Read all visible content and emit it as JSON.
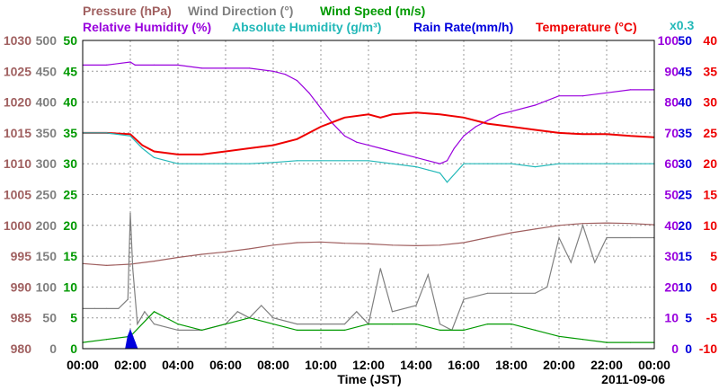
{
  "chart_data": {
    "type": "line",
    "date": "2011-09-06",
    "xlabel": "Time (JST)",
    "x_ticks": [
      "00:00",
      "02:00",
      "04:00",
      "06:00",
      "08:00",
      "10:00",
      "12:00",
      "14:00",
      "16:00",
      "18:00",
      "20:00",
      "22:00",
      "00:00"
    ],
    "xlim": [
      0,
      24
    ],
    "grid": true,
    "legend_placement": "top",
    "series_labels": {
      "pressure": "Pressure (hPa)",
      "wind_direction": "Wind Direction (°)",
      "wind_speed": "Wind Speed (m/s)",
      "relative_humidity": "Relative Humidity (%)",
      "absolute_humidity": "Absolute Humidity (g/m³)",
      "rain_rate": "Rain Rate(mm/h)",
      "temperature": "Temperature (°C)"
    },
    "axes": {
      "pressure": {
        "ylim": [
          980,
          1030
        ],
        "ticks": [
          "1030",
          "1025",
          "1020",
          "1015",
          "1010",
          "1005",
          "1000",
          "995",
          "990",
          "985",
          "980"
        ],
        "color": "#a06060"
      },
      "wind_direction": {
        "ylim": [
          0,
          500
        ],
        "ticks": [
          "500",
          "450",
          "400",
          "350",
          "300",
          "250",
          "200",
          "150",
          "100",
          "50",
          "0"
        ],
        "color": "#808080"
      },
      "wind_speed": {
        "ylim": [
          0,
          50
        ],
        "ticks": [
          "50",
          "45",
          "40",
          "35",
          "30",
          "25",
          "20",
          "15",
          "10",
          "5",
          "0"
        ],
        "color": "#009900"
      },
      "relative_humidity": {
        "ylim": [
          0,
          100
        ],
        "ticks": [
          "100",
          "90",
          "80",
          "70",
          "60",
          "50",
          "40",
          "30",
          "20",
          "10",
          "0"
        ],
        "color": "#9900dd"
      },
      "rain_rate": {
        "ylim": [
          0,
          50
        ],
        "ticks": [
          "50",
          "45",
          "40",
          "35",
          "30",
          "25",
          "20",
          "15",
          "10",
          "5",
          "0"
        ],
        "color": "#0000dd"
      },
      "temperature": {
        "ylim": [
          -10,
          40
        ],
        "ticks": [
          "40",
          "35",
          "30",
          "25",
          "20",
          "15",
          "10",
          "5",
          "0",
          "-5",
          "-10"
        ],
        "color": "#ee0000"
      },
      "absolute_humidity_scale": "x0.3"
    },
    "series": [
      {
        "key": "relative_humidity",
        "color": "#9900dd",
        "x": [
          0,
          1,
          2,
          2.2,
          3,
          4,
          5,
          6,
          7,
          8,
          8.5,
          9,
          9.5,
          10,
          10.5,
          11,
          11.5,
          12,
          12.5,
          13,
          13.5,
          14,
          14.5,
          15,
          15.3,
          15.6,
          16,
          16.5,
          17,
          17.5,
          18,
          19,
          20,
          21,
          22,
          23,
          24
        ],
        "y": [
          92,
          92,
          93,
          92,
          92,
          92,
          91,
          91,
          91,
          90,
          89,
          87,
          83,
          78,
          73,
          69,
          67,
          66,
          65,
          64,
          63,
          62,
          61,
          60,
          61,
          65,
          69,
          72,
          74,
          76,
          77,
          79,
          82,
          82,
          83,
          84,
          84
        ]
      },
      {
        "key": "temperature",
        "color": "#ee0000",
        "x": [
          0,
          1,
          2,
          2.5,
          3,
          4,
          5,
          6,
          7,
          8,
          9,
          10,
          11,
          12,
          12.5,
          13,
          14,
          15,
          16,
          17,
          18,
          19,
          20,
          21,
          22,
          23,
          24
        ],
        "y": [
          25,
          25,
          24.8,
          23,
          22,
          21.5,
          21.5,
          22,
          22.5,
          23,
          24,
          26,
          27.5,
          28,
          27.5,
          28,
          28.3,
          28,
          27.5,
          26.5,
          26,
          25.5,
          25,
          24.8,
          24.8,
          24.5,
          24.3
        ]
      },
      {
        "key": "absolute_humidity",
        "color": "#22b8b8",
        "x": [
          0,
          1,
          2,
          2.5,
          3,
          4,
          5,
          6,
          7,
          8,
          9,
          10,
          11,
          12,
          13,
          14,
          14.5,
          15,
          15.3,
          16,
          17,
          18,
          19,
          20,
          21,
          22,
          23,
          24
        ],
        "y": [
          350,
          350,
          345,
          325,
          310,
          300,
          300,
          300,
          300,
          302,
          305,
          305,
          305,
          305,
          300,
          295,
          290,
          285,
          270,
          300,
          300,
          300,
          295,
          300,
          300,
          300,
          300,
          300
        ]
      },
      {
        "key": "pressure",
        "color": "#a06060",
        "x": [
          0,
          1,
          2,
          3,
          4,
          5,
          6,
          7,
          8,
          9,
          10,
          11,
          12,
          13,
          14,
          15,
          16,
          17,
          18,
          19,
          20,
          21,
          22,
          23,
          24
        ],
        "y": [
          993.8,
          993.5,
          993.7,
          994.2,
          994.8,
          995.3,
          995.7,
          996.2,
          996.8,
          997.2,
          997.3,
          997.1,
          997,
          996.8,
          996.7,
          996.8,
          997.2,
          998,
          998.8,
          999.4,
          1000,
          1000.3,
          1000.4,
          1000.3,
          1000.1
        ]
      },
      {
        "key": "wind_direction",
        "color": "#808080",
        "x": [
          0,
          0.5,
          1,
          1.5,
          1.9,
          2,
          2.1,
          2.3,
          2.6,
          3,
          4,
          5,
          6,
          6.5,
          7,
          7.5,
          8,
          9,
          10,
          11,
          11.5,
          12,
          12.5,
          13,
          14,
          14.5,
          15,
          15.5,
          16,
          17,
          18,
          19,
          19.5,
          20,
          20.5,
          21,
          21.5,
          22,
          23,
          24
        ],
        "y": [
          65,
          65,
          65,
          65,
          80,
          220,
          130,
          40,
          60,
          40,
          30,
          30,
          40,
          60,
          50,
          70,
          50,
          40,
          40,
          40,
          60,
          40,
          130,
          60,
          70,
          120,
          40,
          30,
          80,
          90,
          90,
          90,
          100,
          180,
          140,
          200,
          140,
          180,
          180,
          180
        ]
      },
      {
        "key": "wind_speed",
        "color": "#009900",
        "x": [
          0,
          1,
          2,
          3,
          4,
          5,
          6,
          7,
          8,
          9,
          10,
          11,
          12,
          13,
          14,
          15,
          16,
          17,
          18,
          19,
          20,
          21,
          22,
          23,
          24
        ],
        "y": [
          1,
          1.5,
          2,
          6,
          4,
          3,
          4,
          5,
          4,
          3,
          3,
          3,
          4,
          4,
          4,
          3,
          3,
          4,
          4,
          3,
          2,
          1.5,
          1,
          1,
          1
        ]
      },
      {
        "key": "rain_rate",
        "color": "#0000dd",
        "x": [
          1.8,
          1.9,
          2.0,
          2.1,
          2.2,
          2.3
        ],
        "y": [
          0,
          2,
          3,
          2,
          1,
          0
        ]
      }
    ]
  },
  "stamp": "2011-09-06"
}
